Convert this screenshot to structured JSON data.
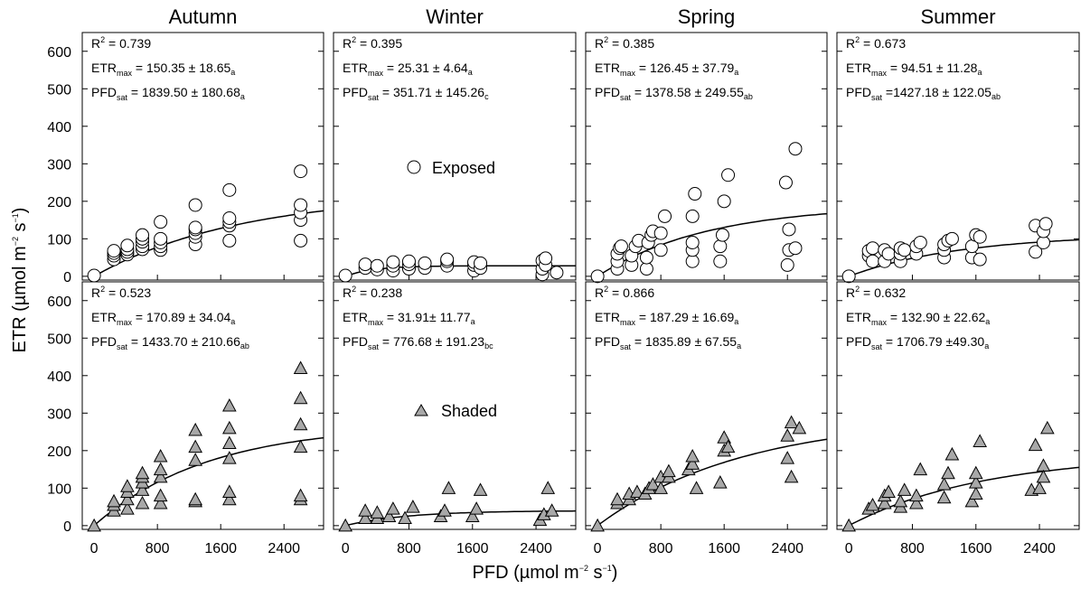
{
  "chart_data": {
    "type": "scatter",
    "xlabel": "PFD (µmol m⁻² s⁻¹)",
    "ylabel": "ETR (µmol m⁻² s⁻¹)",
    "xlim": [
      -150,
      2900
    ],
    "ylim": [
      -10,
      650
    ],
    "x_ticks": [
      "0",
      "800",
      "1600",
      "2400"
    ],
    "y_ticks": [
      "0",
      "100",
      "200",
      "300",
      "400",
      "500",
      "600"
    ],
    "seasons": [
      "Autumn",
      "Winter",
      "Spring",
      "Summer"
    ],
    "legend": {
      "exposed": "Exposed",
      "shaded": "Shaded"
    },
    "panels": [
      {
        "season": "Autumn",
        "group": "exposed",
        "r2": "R² = 0.739",
        "etr_max": "= 150.35 ± 18.65",
        "etr_max_letter": "a",
        "pfd_sat": "= 1839.50 ± 180.68",
        "pfd_sat_letter": "a",
        "fit": {
          "etr_max": 220,
          "pfd_sat": 1839.5
        },
        "points": [
          [
            0,
            2
          ],
          [
            250,
            45
          ],
          [
            250,
            55
          ],
          [
            250,
            62
          ],
          [
            250,
            68
          ],
          [
            420,
            58
          ],
          [
            420,
            65
          ],
          [
            420,
            72
          ],
          [
            420,
            82
          ],
          [
            610,
            72
          ],
          [
            610,
            80
          ],
          [
            610,
            92
          ],
          [
            610,
            100
          ],
          [
            610,
            110
          ],
          [
            840,
            70
          ],
          [
            840,
            80
          ],
          [
            840,
            90
          ],
          [
            840,
            100
          ],
          [
            840,
            145
          ],
          [
            1280,
            85
          ],
          [
            1280,
            105
          ],
          [
            1280,
            115
          ],
          [
            1280,
            125
          ],
          [
            1280,
            130
          ],
          [
            1280,
            190
          ],
          [
            1710,
            95
          ],
          [
            1710,
            135
          ],
          [
            1710,
            145
          ],
          [
            1710,
            155
          ],
          [
            1710,
            230
          ],
          [
            2610,
            95
          ],
          [
            2610,
            150
          ],
          [
            2610,
            170
          ],
          [
            2610,
            190
          ],
          [
            2610,
            280
          ]
        ]
      },
      {
        "season": "Winter",
        "group": "exposed",
        "r2": "R² = 0.395",
        "etr_max": "= 25.31 ± 4.64",
        "etr_max_letter": "a",
        "pfd_sat": "= 351.71 ± 145.26",
        "pfd_sat_letter": "c",
        "fit": {
          "etr_max": 28,
          "pfd_sat": 351.71
        },
        "points": [
          [
            0,
            2
          ],
          [
            250,
            22
          ],
          [
            250,
            32
          ],
          [
            400,
            18
          ],
          [
            400,
            28
          ],
          [
            600,
            15
          ],
          [
            600,
            28
          ],
          [
            600,
            38
          ],
          [
            800,
            20
          ],
          [
            800,
            32
          ],
          [
            800,
            40
          ],
          [
            1000,
            22
          ],
          [
            1000,
            35
          ],
          [
            1280,
            28
          ],
          [
            1280,
            40
          ],
          [
            1280,
            45
          ],
          [
            1620,
            15
          ],
          [
            1620,
            30
          ],
          [
            1620,
            38
          ],
          [
            1700,
            22
          ],
          [
            1700,
            35
          ],
          [
            2480,
            5
          ],
          [
            2480,
            20
          ],
          [
            2480,
            42
          ],
          [
            2520,
            30
          ],
          [
            2520,
            48
          ],
          [
            2660,
            10
          ]
        ]
      },
      {
        "season": "Spring",
        "group": "exposed",
        "r2": "R² = 0.385",
        "etr_max": "= 126.45 ± 37.79",
        "etr_max_letter": "a",
        "pfd_sat": "= 1378.58 ± 249.55",
        "pfd_sat_letter": "ab",
        "fit": {
          "etr_max": 190,
          "pfd_sat": 1378.58
        },
        "points": [
          [
            0,
            0
          ],
          [
            250,
            20
          ],
          [
            250,
            40
          ],
          [
            250,
            60
          ],
          [
            280,
            75
          ],
          [
            300,
            80
          ],
          [
            430,
            30
          ],
          [
            430,
            55
          ],
          [
            480,
            80
          ],
          [
            520,
            95
          ],
          [
            620,
            20
          ],
          [
            620,
            50
          ],
          [
            640,
            90
          ],
          [
            680,
            110
          ],
          [
            700,
            120
          ],
          [
            800,
            70
          ],
          [
            800,
            115
          ],
          [
            850,
            160
          ],
          [
            1200,
            40
          ],
          [
            1200,
            70
          ],
          [
            1200,
            90
          ],
          [
            1200,
            160
          ],
          [
            1230,
            220
          ],
          [
            1550,
            40
          ],
          [
            1550,
            80
          ],
          [
            1580,
            110
          ],
          [
            1600,
            200
          ],
          [
            1650,
            270
          ],
          [
            2380,
            250
          ],
          [
            2400,
            30
          ],
          [
            2420,
            70
          ],
          [
            2420,
            125
          ],
          [
            2500,
            75
          ],
          [
            2500,
            340
          ]
        ]
      },
      {
        "season": "Summer",
        "group": "exposed",
        "r2": "R² = 0.673",
        "etr_max": "= 94.51 ± 11.28",
        "etr_max_letter": "a",
        "pfd_sat": "=1427.18 ± 122.05",
        "pfd_sat_letter": "ab",
        "fit": {
          "etr_max": 112,
          "pfd_sat": 1427.18
        },
        "points": [
          [
            0,
            0
          ],
          [
            250,
            55
          ],
          [
            250,
            68
          ],
          [
            300,
            40
          ],
          [
            300,
            75
          ],
          [
            450,
            40
          ],
          [
            450,
            70
          ],
          [
            500,
            60
          ],
          [
            650,
            40
          ],
          [
            650,
            60
          ],
          [
            650,
            75
          ],
          [
            700,
            70
          ],
          [
            850,
            60
          ],
          [
            850,
            80
          ],
          [
            900,
            90
          ],
          [
            1200,
            50
          ],
          [
            1200,
            70
          ],
          [
            1200,
            85
          ],
          [
            1250,
            95
          ],
          [
            1300,
            100
          ],
          [
            1550,
            50
          ],
          [
            1550,
            80
          ],
          [
            1600,
            110
          ],
          [
            1650,
            45
          ],
          [
            1650,
            105
          ],
          [
            2350,
            65
          ],
          [
            2350,
            135
          ],
          [
            2450,
            90
          ],
          [
            2450,
            120
          ],
          [
            2480,
            140
          ]
        ]
      },
      {
        "season": "Autumn",
        "group": "shaded",
        "r2": "R² = 0.523",
        "etr_max": "= 170.89 ± 34.04",
        "etr_max_letter": "a",
        "pfd_sat": "= 1433.70 ± 210.66",
        "pfd_sat_letter": "ab",
        "fit": {
          "etr_max": 270,
          "pfd_sat": 1433.7
        },
        "points": [
          [
            0,
            0
          ],
          [
            250,
            40
          ],
          [
            250,
            55
          ],
          [
            250,
            65
          ],
          [
            420,
            45
          ],
          [
            420,
            70
          ],
          [
            420,
            90
          ],
          [
            420,
            105
          ],
          [
            610,
            60
          ],
          [
            610,
            95
          ],
          [
            610,
            115
          ],
          [
            610,
            130
          ],
          [
            610,
            140
          ],
          [
            840,
            60
          ],
          [
            840,
            80
          ],
          [
            840,
            130
          ],
          [
            840,
            150
          ],
          [
            840,
            185
          ],
          [
            1280,
            65
          ],
          [
            1280,
            70
          ],
          [
            1280,
            175
          ],
          [
            1280,
            210
          ],
          [
            1280,
            255
          ],
          [
            1710,
            70
          ],
          [
            1710,
            90
          ],
          [
            1710,
            180
          ],
          [
            1710,
            220
          ],
          [
            1710,
            260
          ],
          [
            1710,
            320
          ],
          [
            2610,
            70
          ],
          [
            2610,
            80
          ],
          [
            2610,
            210
          ],
          [
            2610,
            270
          ],
          [
            2610,
            340
          ],
          [
            2610,
            420
          ]
        ]
      },
      {
        "season": "Winter",
        "group": "shaded",
        "r2": "R² = 0.238",
        "etr_max": "= 31.91± 11.77",
        "etr_max_letter": "a",
        "pfd_sat": "= 776.68 ± 191.23",
        "pfd_sat_letter": "bc",
        "fit": {
          "etr_max": 40,
          "pfd_sat": 776.68
        },
        "points": [
          [
            0,
            0
          ],
          [
            250,
            20
          ],
          [
            250,
            40
          ],
          [
            400,
            20
          ],
          [
            400,
            35
          ],
          [
            550,
            25
          ],
          [
            600,
            45
          ],
          [
            750,
            20
          ],
          [
            850,
            50
          ],
          [
            1200,
            25
          ],
          [
            1250,
            40
          ],
          [
            1300,
            100
          ],
          [
            1600,
            25
          ],
          [
            1650,
            45
          ],
          [
            1700,
            95
          ],
          [
            2450,
            15
          ],
          [
            2500,
            30
          ],
          [
            2550,
            100
          ],
          [
            2600,
            40
          ]
        ]
      },
      {
        "season": "Spring",
        "group": "shaded",
        "r2": "R² = 0.866",
        "etr_max": "= 187.29 ± 16.69",
        "etr_max_letter": "a",
        "pfd_sat": "= 1835.89 ± 67.55",
        "pfd_sat_letter": "a",
        "fit": {
          "etr_max": 290,
          "pfd_sat": 1835.89
        },
        "points": [
          [
            0,
            0
          ],
          [
            250,
            60
          ],
          [
            250,
            70
          ],
          [
            400,
            70
          ],
          [
            400,
            85
          ],
          [
            500,
            90
          ],
          [
            600,
            85
          ],
          [
            650,
            100
          ],
          [
            700,
            110
          ],
          [
            800,
            100
          ],
          [
            800,
            130
          ],
          [
            900,
            130
          ],
          [
            900,
            145
          ],
          [
            1150,
            150
          ],
          [
            1200,
            165
          ],
          [
            1200,
            185
          ],
          [
            1250,
            100
          ],
          [
            1550,
            115
          ],
          [
            1600,
            200
          ],
          [
            1600,
            235
          ],
          [
            1650,
            210
          ],
          [
            2400,
            180
          ],
          [
            2400,
            240
          ],
          [
            2450,
            130
          ],
          [
            2450,
            275
          ],
          [
            2550,
            260
          ]
        ]
      },
      {
        "season": "Summer",
        "group": "shaded",
        "r2": "R² = 0.632",
        "etr_max": "= 132.90 ± 22.62",
        "etr_max_letter": "a",
        "pfd_sat": "= 1706.79 ±49.30",
        "pfd_sat_letter": "a",
        "fit": {
          "etr_max": 190,
          "pfd_sat": 1706.79
        },
        "points": [
          [
            0,
            0
          ],
          [
            250,
            45
          ],
          [
            300,
            55
          ],
          [
            450,
            60
          ],
          [
            450,
            80
          ],
          [
            500,
            90
          ],
          [
            650,
            50
          ],
          [
            650,
            65
          ],
          [
            700,
            95
          ],
          [
            850,
            60
          ],
          [
            850,
            80
          ],
          [
            900,
            150
          ],
          [
            1200,
            75
          ],
          [
            1200,
            110
          ],
          [
            1250,
            140
          ],
          [
            1300,
            190
          ],
          [
            1550,
            65
          ],
          [
            1600,
            85
          ],
          [
            1600,
            115
          ],
          [
            1600,
            140
          ],
          [
            1650,
            225
          ],
          [
            2300,
            95
          ],
          [
            2350,
            215
          ],
          [
            2400,
            100
          ],
          [
            2450,
            160
          ],
          [
            2450,
            130
          ],
          [
            2500,
            260
          ]
        ]
      }
    ]
  }
}
